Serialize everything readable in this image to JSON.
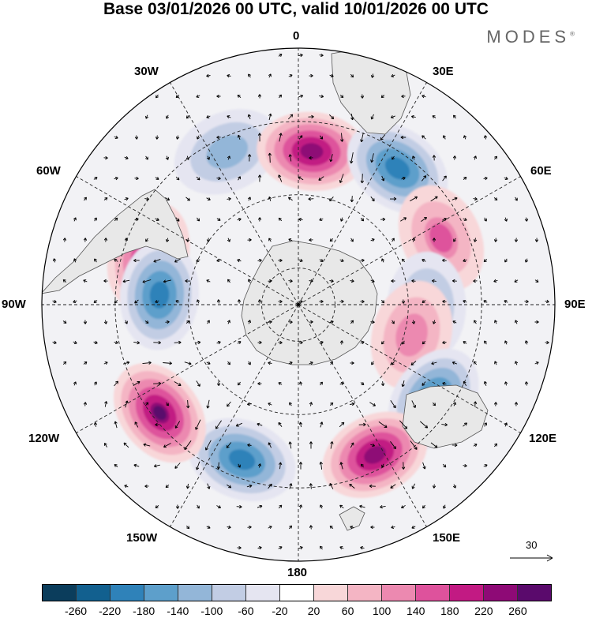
{
  "title": "Base 03/01/2026 00 UTC, valid 10/01/2026 00 UTC",
  "brand": "MODES",
  "brand_mark": "®",
  "longitude_labels": {
    "lon0": "0",
    "lon30E": "30E",
    "lon60E": "60E",
    "lon90E": "90E",
    "lon120E": "120E",
    "lon150E": "150E",
    "lon180": "180",
    "lon150W": "150W",
    "lon120W": "120W",
    "lon90W": "90W",
    "lon60W": "60W",
    "lon30W": "30W"
  },
  "reference_vector": {
    "value": "30"
  },
  "colorbar": {
    "colors": [
      "#0b3d5c",
      "#12608f",
      "#2f82b9",
      "#5d9fcb",
      "#93b6d8",
      "#c2cde4",
      "#e5e5f1",
      "#ffffff",
      "#f8d7d9",
      "#f4b5c4",
      "#ec89b0",
      "#de529c",
      "#c21a83",
      "#8e0a76",
      "#5a0a6c"
    ],
    "ticks": [
      "-260",
      "-220",
      "-180",
      "-140",
      "-100",
      "-60",
      "-20",
      "20",
      "60",
      "100",
      "140",
      "180",
      "220",
      "260"
    ]
  },
  "anomaly_centers": [
    {
      "name": "pos-drake",
      "lon": -72,
      "lat": -47,
      "value": 210
    },
    {
      "name": "neg-southpacific",
      "lon": -86,
      "lat": -52,
      "value": -200
    },
    {
      "name": "neg-weddell",
      "lon": -25,
      "lat": -44,
      "value": -130
    },
    {
      "name": "pos-southatlantic",
      "lon": 5,
      "lat": -48,
      "value": 220
    },
    {
      "name": "neg-southafrica",
      "lon": 36,
      "lat": -44,
      "value": -200
    },
    {
      "name": "pos-southindian",
      "lon": 65,
      "lat": -47,
      "value": 130
    },
    {
      "name": "neg-kerguelen",
      "lon": 91,
      "lat": -55,
      "value": -110
    },
    {
      "name": "pos-indian2",
      "lon": 105,
      "lat": -58,
      "value": 100
    },
    {
      "name": "neg-australia",
      "lon": 125,
      "lat": -45,
      "value": -210
    },
    {
      "name": "pos-tasman",
      "lon": 153,
      "lat": -44,
      "value": 240
    },
    {
      "name": "neg-rossnorth",
      "lon": -160,
      "lat": -45,
      "value": -200
    },
    {
      "name": "pos-westpacific",
      "lon": -128,
      "lat": -42,
      "value": 250
    }
  ]
}
